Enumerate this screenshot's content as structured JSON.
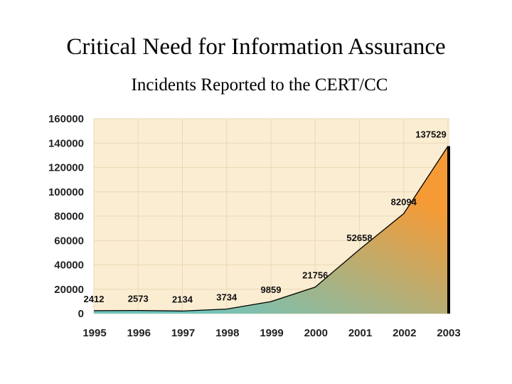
{
  "header": {
    "title": "Critical Need for Information Assurance",
    "subtitle": "Incidents Reported to the CERT/CC"
  },
  "chart_data": {
    "type": "area",
    "title": "Critical Need for Information Assurance",
    "subtitle": "Incidents Reported to the CERT/CC",
    "xlabel": "",
    "ylabel": "",
    "categories": [
      "1995",
      "1996",
      "1997",
      "1998",
      "1999",
      "2000",
      "2001",
      "2002",
      "2003"
    ],
    "values": [
      2412,
      2573,
      2134,
      3734,
      9859,
      21756,
      52658,
      82094,
      137529
    ],
    "data_labels": [
      "2412",
      "2573",
      "2134",
      "3734",
      "9859",
      "21756",
      "52658",
      "82094",
      "137529"
    ],
    "ylim": [
      0,
      160000
    ],
    "yticks": [
      0,
      20000,
      40000,
      60000,
      80000,
      100000,
      120000,
      140000,
      160000
    ],
    "ytick_labels": [
      "0",
      "20000",
      "40000",
      "60000",
      "80000",
      "100000",
      "120000",
      "140000",
      "160000"
    ],
    "grid": true,
    "legend": "none",
    "colors": {
      "plot_background": "#fbedd2",
      "gridline": "#ead9b4",
      "fill_low": "#6fc4bd",
      "fill_high": "#f59a35",
      "line": "#000000",
      "end_bar": "#000000"
    }
  }
}
